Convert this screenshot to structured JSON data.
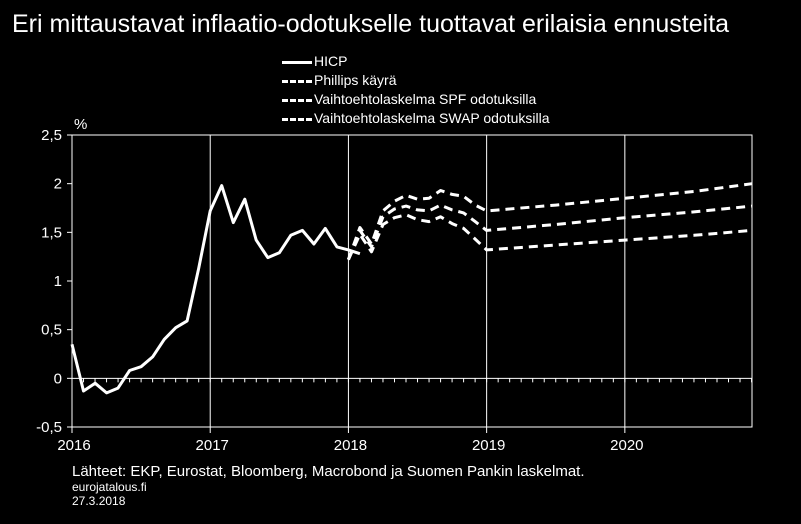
{
  "title": "Eri mittaustavat inflaatio-odotukselle tuottavat erilaisia ennusteita",
  "footer": {
    "source": "Lähteet: EKP, Eurostat, Bloomberg, Macrobond ja Suomen Pankin laskelmat.",
    "site": "eurojatalous.fi",
    "date": "27.3.2018"
  },
  "chart_data": {
    "type": "line",
    "ylabel": "%",
    "ylim": [
      -0.5,
      2.5
    ],
    "yticks": [
      -0.5,
      0,
      0.5,
      1,
      1.5,
      2,
      2.5
    ],
    "ytick_labels": [
      "-0,5",
      "0",
      "0,5",
      "1",
      "1,5",
      "2",
      "2,5"
    ],
    "xlim": [
      2016.0,
      2020.92
    ],
    "xticks": [
      2016,
      2017,
      2018,
      2019,
      2020
    ],
    "xtick_labels": [
      "2016",
      "2017",
      "2018",
      "2019",
      "2020"
    ],
    "grid": false,
    "legend_position": "top",
    "series": [
      {
        "name": "HICP",
        "style": "solid",
        "x": [
          2016.0,
          2016.083,
          2016.167,
          2016.25,
          2016.333,
          2016.417,
          2016.5,
          2016.583,
          2016.667,
          2016.75,
          2016.833,
          2016.917,
          2017.0,
          2017.083,
          2017.167,
          2017.25,
          2017.333,
          2017.417,
          2017.5,
          2017.583,
          2017.667,
          2017.75,
          2017.833,
          2017.917,
          2018.0,
          2018.083
        ],
        "y": [
          0.35,
          -0.13,
          -0.05,
          -0.15,
          -0.1,
          0.08,
          0.12,
          0.22,
          0.4,
          0.52,
          0.59,
          1.13,
          1.72,
          1.98,
          1.6,
          1.84,
          1.42,
          1.24,
          1.29,
          1.47,
          1.52,
          1.38,
          1.54,
          1.35,
          1.32,
          1.28
        ]
      },
      {
        "name": "Phillips käyrä",
        "style": "dashed",
        "x": [
          2018.0,
          2018.083,
          2018.167,
          2018.25,
          2018.333,
          2018.417,
          2018.5,
          2018.583,
          2018.667,
          2018.75,
          2018.833,
          2018.917,
          2019.0,
          2019.5,
          2020.0,
          2020.5,
          2020.92
        ],
        "y": [
          1.22,
          1.55,
          1.38,
          1.72,
          1.82,
          1.88,
          1.84,
          1.85,
          1.93,
          1.89,
          1.87,
          1.78,
          1.72,
          1.78,
          1.85,
          1.92,
          2.0
        ]
      },
      {
        "name": "Vaihtoehtolaskelma SPF odotuksilla",
        "style": "dashed",
        "x": [
          2018.0,
          2018.083,
          2018.167,
          2018.25,
          2018.333,
          2018.417,
          2018.5,
          2018.583,
          2018.667,
          2018.75,
          2018.833,
          2018.917,
          2019.0,
          2019.5,
          2020.0,
          2020.5,
          2020.92
        ],
        "y": [
          1.22,
          1.52,
          1.35,
          1.66,
          1.74,
          1.77,
          1.73,
          1.72,
          1.78,
          1.73,
          1.7,
          1.61,
          1.52,
          1.58,
          1.65,
          1.71,
          1.77
        ]
      },
      {
        "name": "Vaihtoehtolaskelma SWAP odotuksilla",
        "style": "dashed",
        "x": [
          2018.0,
          2018.083,
          2018.167,
          2018.25,
          2018.333,
          2018.417,
          2018.5,
          2018.583,
          2018.667,
          2018.75,
          2018.833,
          2018.917,
          2019.0,
          2019.5,
          2020.0,
          2020.5,
          2020.92
        ],
        "y": [
          1.22,
          1.48,
          1.3,
          1.58,
          1.65,
          1.68,
          1.63,
          1.61,
          1.66,
          1.59,
          1.54,
          1.43,
          1.32,
          1.37,
          1.42,
          1.47,
          1.52
        ]
      }
    ]
  }
}
